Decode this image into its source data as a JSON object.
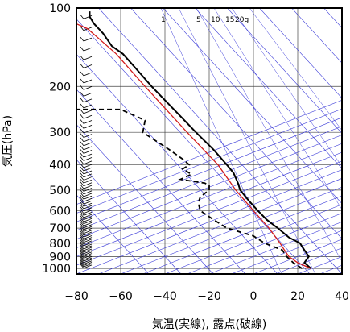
{
  "chart_data": {
    "type": "line",
    "title": "",
    "xlabel": "気温(実線), 露点(破線)",
    "ylabel": "気圧(hPa)",
    "x_ticks": [
      -80,
      -60,
      -40,
      -20,
      0,
      20,
      40
    ],
    "y_ticks": [
      100,
      200,
      300,
      400,
      500,
      600,
      700,
      800,
      900,
      1000
    ],
    "xlim": [
      -80,
      40
    ],
    "ylim": [
      1050,
      100
    ],
    "yscale": "log",
    "grid": true,
    "mixing_ratio_labels": [
      "1",
      "5",
      "10",
      "15",
      "20g"
    ],
    "series": [
      {
        "style": "solid-black",
        "points": [
          {
            "p": 1000,
            "t": 26
          },
          {
            "p": 950,
            "t": 23
          },
          {
            "p": 925,
            "t": 24
          },
          {
            "p": 900,
            "t": 25
          },
          {
            "p": 850,
            "t": 23
          },
          {
            "p": 800,
            "t": 21
          },
          {
            "p": 760,
            "t": 16
          },
          {
            "p": 700,
            "t": 11
          },
          {
            "p": 650,
            "t": 6
          },
          {
            "p": 600,
            "t": 2
          },
          {
            "p": 550,
            "t": -2
          },
          {
            "p": 500,
            "t": -6
          },
          {
            "p": 470,
            "t": -7
          },
          {
            "p": 430,
            "t": -9
          },
          {
            "p": 400,
            "t": -12
          },
          {
            "p": 350,
            "t": -18
          },
          {
            "p": 300,
            "t": -26
          },
          {
            "p": 250,
            "t": -35
          },
          {
            "p": 200,
            "t": -46
          },
          {
            "p": 175,
            "t": -52
          },
          {
            "p": 150,
            "t": -59
          },
          {
            "p": 140,
            "t": -64
          },
          {
            "p": 125,
            "t": -68
          },
          {
            "p": 115,
            "t": -72
          },
          {
            "p": 108,
            "t": -74
          },
          {
            "p": 103,
            "t": -74
          }
        ]
      },
      {
        "style": "dashed-black",
        "points": [
          {
            "p": 1000,
            "t": 22
          },
          {
            "p": 950,
            "t": 18
          },
          {
            "p": 900,
            "t": 15
          },
          {
            "p": 850,
            "t": 13
          },
          {
            "p": 800,
            "t": 5
          },
          {
            "p": 750,
            "t": 0
          },
          {
            "p": 700,
            "t": -12
          },
          {
            "p": 650,
            "t": -18
          },
          {
            "p": 600,
            "t": -24
          },
          {
            "p": 560,
            "t": -25
          },
          {
            "p": 530,
            "t": -24
          },
          {
            "p": 500,
            "t": -20
          },
          {
            "p": 480,
            "t": -20
          },
          {
            "p": 470,
            "t": -22
          },
          {
            "p": 455,
            "t": -33
          },
          {
            "p": 435,
            "t": -28
          },
          {
            "p": 415,
            "t": -32
          },
          {
            "p": 400,
            "t": -29
          },
          {
            "p": 380,
            "t": -32
          },
          {
            "p": 350,
            "t": -38
          },
          {
            "p": 300,
            "t": -50
          },
          {
            "p": 270,
            "t": -49
          },
          {
            "p": 245,
            "t": -60
          },
          {
            "p": 245,
            "t": -80
          }
        ]
      },
      {
        "style": "solid-red",
        "points": [
          {
            "p": 1000,
            "t": 26
          },
          {
            "p": 950,
            "t": 20
          },
          {
            "p": 900,
            "t": 16
          },
          {
            "p": 850,
            "t": 14
          },
          {
            "p": 800,
            "t": 12
          },
          {
            "p": 700,
            "t": 7
          },
          {
            "p": 600,
            "t": 0
          },
          {
            "p": 500,
            "t": -8
          },
          {
            "p": 400,
            "t": -16
          },
          {
            "p": 300,
            "t": -30
          },
          {
            "p": 200,
            "t": -49
          },
          {
            "p": 150,
            "t": -62
          },
          {
            "p": 120,
            "t": -75
          },
          {
            "p": 115,
            "t": -80
          }
        ]
      }
    ],
    "wind_barbs": "shown along left edge at many levels"
  }
}
